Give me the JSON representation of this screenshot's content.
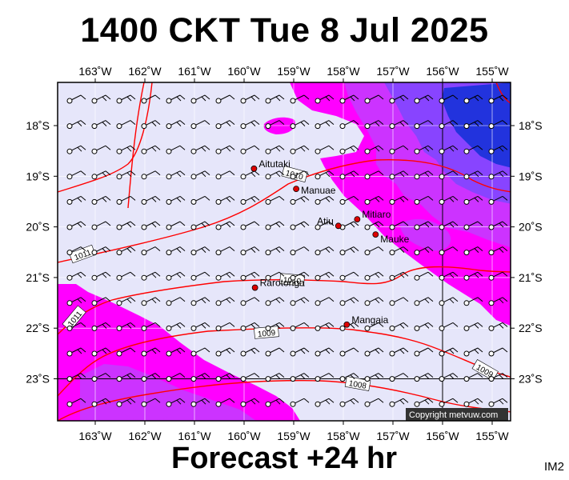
{
  "title": "1400 CKT Tue 8 Jul 2025",
  "footer": "Forecast +24 hr",
  "corner_label": "IM2",
  "copyright": "Copyright metvuw.com",
  "lon_labels": [
    "163˚W",
    "162˚W",
    "161˚W",
    "160˚W",
    "159˚W",
    "158˚W",
    "157˚W",
    "156˚W",
    "155˚W"
  ],
  "lat_labels": [
    "18˚S",
    "19˚S",
    "20˚S",
    "21˚S",
    "22˚S",
    "23˚S"
  ],
  "places": [
    {
      "name": "Aitutaki",
      "lon": -159.8,
      "lat": -18.85
    },
    {
      "name": "Manuae",
      "lon": -158.95,
      "lat": -19.25
    },
    {
      "name": "Atiu",
      "lon": -158.1,
      "lat": -19.98
    },
    {
      "name": "Mitiaro",
      "lon": -157.72,
      "lat": -19.85
    },
    {
      "name": "Mauke",
      "lon": -157.35,
      "lat": -20.15
    },
    {
      "name": "Rarotonga",
      "lon": -159.78,
      "lat": -21.2
    },
    {
      "name": "Mangaia",
      "lon": -157.93,
      "lat": -21.93
    }
  ],
  "isobars": [
    {
      "value": "1011"
    },
    {
      "value": "1011"
    },
    {
      "value": "1010"
    },
    {
      "value": "1010"
    },
    {
      "value": "1009"
    },
    {
      "value": "1009"
    },
    {
      "value": "1008"
    }
  ],
  "colors": {
    "background": "#e6e6fa",
    "rain_light": "#ff00ff",
    "rain_medium": "#cc33ff",
    "rain_heavy": "#8844ff",
    "rain_max": "#2233dd",
    "isobar": "#ff0000"
  }
}
